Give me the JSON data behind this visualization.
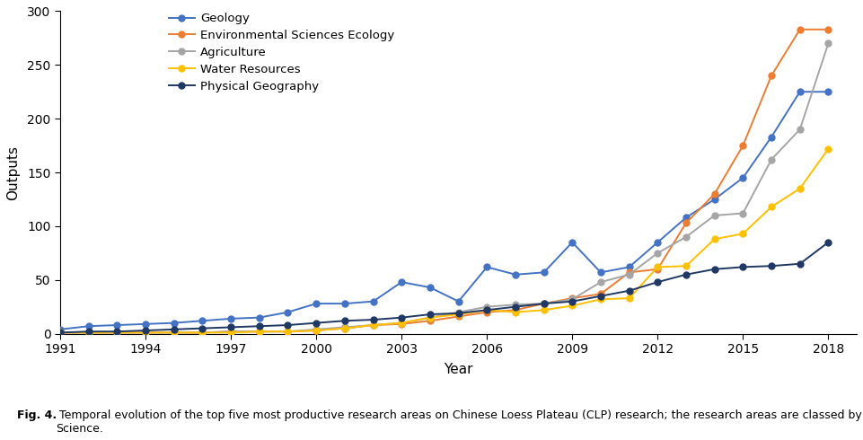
{
  "years": [
    1991,
    1992,
    1993,
    1994,
    1995,
    1996,
    1997,
    1998,
    1999,
    2000,
    2001,
    2002,
    2003,
    2004,
    2005,
    2006,
    2007,
    2008,
    2009,
    2010,
    2011,
    2012,
    2013,
    2014,
    2015,
    2016,
    2017,
    2018
  ],
  "geology": [
    4,
    7,
    8,
    9,
    10,
    12,
    14,
    15,
    20,
    28,
    28,
    30,
    48,
    43,
    30,
    62,
    55,
    57,
    85,
    57,
    62,
    85,
    108,
    125,
    145,
    183,
    225,
    225
  ],
  "env_sci_ecology": [
    1,
    1,
    1,
    1,
    1,
    1,
    2,
    2,
    2,
    3,
    5,
    8,
    9,
    12,
    16,
    20,
    22,
    28,
    33,
    37,
    57,
    60,
    103,
    130,
    175,
    240,
    283,
    283
  ],
  "agriculture": [
    1,
    1,
    1,
    1,
    1,
    1,
    2,
    2,
    2,
    4,
    6,
    8,
    10,
    15,
    20,
    25,
    27,
    28,
    32,
    48,
    55,
    75,
    90,
    110,
    112,
    162,
    190,
    270
  ],
  "water_resources": [
    1,
    1,
    1,
    1,
    1,
    1,
    1,
    2,
    2,
    3,
    5,
    8,
    10,
    15,
    18,
    22,
    20,
    22,
    26,
    32,
    33,
    62,
    63,
    88,
    93,
    118,
    135,
    172
  ],
  "physical_geography": [
    1,
    2,
    2,
    3,
    4,
    5,
    6,
    7,
    8,
    10,
    12,
    13,
    15,
    18,
    19,
    22,
    25,
    28,
    30,
    35,
    40,
    48,
    55,
    60,
    62,
    63,
    65,
    85
  ],
  "series_names": [
    "Geology",
    "Environmental Sciences Ecology",
    "Agriculture",
    "Water Resources",
    "Physical Geography"
  ],
  "colors": [
    "#4472c4",
    "#ed7d31",
    "#a5a5a5",
    "#ffc000",
    "#203864"
  ],
  "xlabel": "Year",
  "ylabel": "Outputs",
  "ylim": [
    0,
    300
  ],
  "yticks": [
    0,
    50,
    100,
    150,
    200,
    250,
    300
  ],
  "xlim": [
    1991,
    2019
  ],
  "xticks": [
    1991,
    1994,
    1997,
    2000,
    2003,
    2006,
    2009,
    2012,
    2015,
    2018
  ],
  "caption_bold": "Fig. 4.",
  "caption_normal": " Temporal evolution of the top five most productive research areas on Chinese Loess Plateau (CLP) research; the research areas are classed by the Web of\nScience.",
  "bg_color": "#ffffff",
  "linewidth": 1.4,
  "markersize": 5
}
